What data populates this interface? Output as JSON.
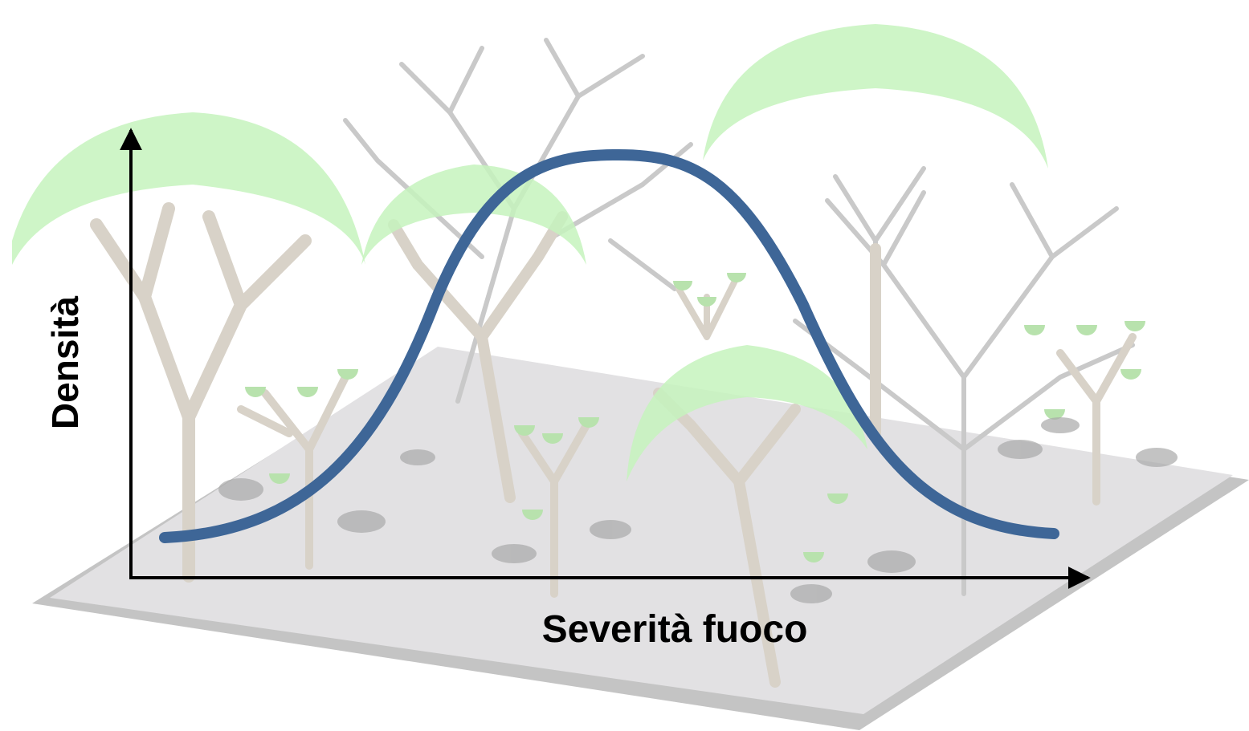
{
  "y_axis_label": "Densità",
  "x_axis_label": "Severità fuoco"
}
